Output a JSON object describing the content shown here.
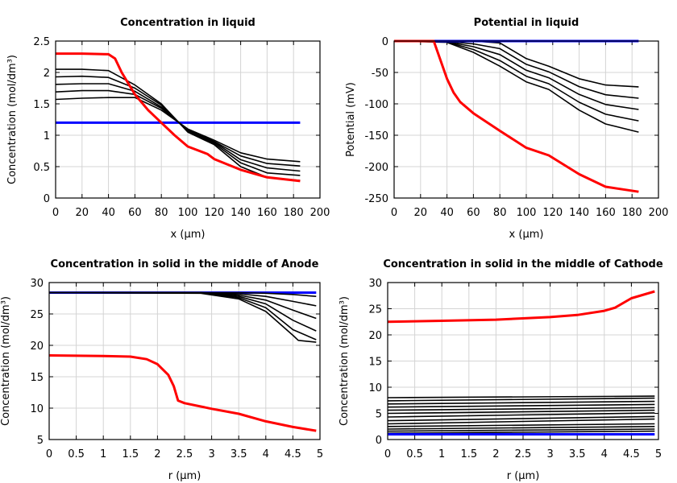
{
  "chart_data": [
    {
      "type": "line",
      "title": "Concentration in liquid",
      "xlabel": "x (µm)",
      "ylabel": "Concentration (mol/dm³)",
      "xlim": [
        0,
        200
      ],
      "ylim": [
        0,
        2.5
      ],
      "xticks": [
        "0",
        "20",
        "40",
        "60",
        "80",
        "100",
        "120",
        "140",
        "160",
        "180",
        "200"
      ],
      "yticks": [
        "0",
        "0.5",
        "1",
        "1.5",
        "2",
        "2.5"
      ],
      "grid": true,
      "series": [
        {
          "color": "#0000ff",
          "x": [
            0,
            185
          ],
          "y": [
            1.2,
            1.2
          ]
        },
        {
          "color": "#000000",
          "x": [
            0,
            20,
            40,
            60,
            80,
            100,
            120,
            140,
            160,
            185
          ],
          "y": [
            1.57,
            1.59,
            1.6,
            1.6,
            1.4,
            1.1,
            0.92,
            0.72,
            0.62,
            0.58
          ]
        },
        {
          "color": "#000000",
          "x": [
            0,
            20,
            40,
            60,
            80,
            100,
            120,
            140,
            160,
            185
          ],
          "y": [
            1.69,
            1.71,
            1.71,
            1.65,
            1.43,
            1.09,
            0.9,
            0.67,
            0.55,
            0.51
          ]
        },
        {
          "color": "#000000",
          "x": [
            0,
            20,
            40,
            60,
            80,
            100,
            120,
            140,
            160,
            185
          ],
          "y": [
            1.81,
            1.82,
            1.82,
            1.7,
            1.45,
            1.08,
            0.89,
            0.61,
            0.48,
            0.43
          ]
        },
        {
          "color": "#000000",
          "x": [
            0,
            20,
            40,
            60,
            80,
            100,
            120,
            140,
            160,
            185
          ],
          "y": [
            1.93,
            1.94,
            1.92,
            1.75,
            1.48,
            1.06,
            0.87,
            0.56,
            0.4,
            0.36
          ]
        },
        {
          "color": "#000000",
          "x": [
            0,
            20,
            40,
            60,
            80,
            100,
            120,
            140,
            160,
            185
          ],
          "y": [
            2.05,
            2.05,
            2.03,
            1.8,
            1.5,
            1.05,
            0.85,
            0.5,
            0.33,
            0.28
          ]
        },
        {
          "color": "#ff0000",
          "x": [
            0,
            20,
            40,
            45,
            50,
            60,
            70,
            80,
            90,
            100,
            115,
            120,
            140,
            160,
            185
          ],
          "y": [
            2.3,
            2.3,
            2.29,
            2.22,
            2.0,
            1.65,
            1.4,
            1.2,
            1.0,
            0.82,
            0.7,
            0.62,
            0.45,
            0.33,
            0.27
          ]
        }
      ]
    },
    {
      "type": "line",
      "title": "Potential in liquid",
      "xlabel": "x (µm)",
      "ylabel": "Potential (mV)",
      "xlim": [
        0,
        200
      ],
      "ylim": [
        -250,
        0
      ],
      "xticks": [
        "0",
        "20",
        "40",
        "60",
        "80",
        "100",
        "120",
        "140",
        "160",
        "180",
        "200"
      ],
      "yticks": [
        "-250",
        "-200",
        "-150",
        "-100",
        "-50",
        "0"
      ],
      "grid": true,
      "series": [
        {
          "color": "#000000",
          "x": [
            0,
            40,
            60,
            80,
            100,
            117,
            140,
            160,
            185
          ],
          "y": [
            0,
            0,
            0,
            -3,
            -28,
            -40,
            -60,
            -70,
            -73
          ]
        },
        {
          "color": "#000000",
          "x": [
            0,
            40,
            60,
            80,
            100,
            117,
            140,
            160,
            185
          ],
          "y": [
            0,
            -0.5,
            -4.5,
            -12,
            -37,
            -49,
            -72.5,
            -85.5,
            -91
          ]
        },
        {
          "color": "#000000",
          "x": [
            0,
            40,
            60,
            80,
            100,
            117,
            140,
            160,
            185
          ],
          "y": [
            0,
            -1,
            -9,
            -21.5,
            -46.5,
            -58.5,
            -85,
            -101,
            -109
          ]
        },
        {
          "color": "#000000",
          "x": [
            0,
            40,
            60,
            80,
            100,
            117,
            140,
            160,
            185
          ],
          "y": [
            0,
            -1.5,
            -13.5,
            -31,
            -56,
            -68,
            -97.5,
            -116.5,
            -127
          ]
        },
        {
          "color": "#000000",
          "x": [
            0,
            40,
            60,
            80,
            100,
            117,
            140,
            160,
            185
          ],
          "y": [
            0,
            -2,
            -18,
            -40,
            -65,
            -77,
            -110,
            -132,
            -145
          ]
        },
        {
          "color": "#0000ff",
          "x": [
            0,
            185
          ],
          "y": [
            0,
            0
          ]
        },
        {
          "color": "#ff0000",
          "x": [
            0,
            30,
            35,
            40,
            45,
            50,
            60,
            80,
            100,
            117,
            140,
            160,
            185
          ],
          "y": [
            0,
            0,
            -30,
            -60,
            -82,
            -97,
            -115,
            -143,
            -170,
            -182,
            -212,
            -232,
            -240
          ]
        }
      ]
    },
    {
      "type": "line",
      "title": "Concentration in solid in the middle of Anode",
      "xlabel": "r (µm)",
      "ylabel": "Concentration (mol/dm³)",
      "xlim": [
        0,
        5
      ],
      "ylim": [
        5,
        30
      ],
      "xticks": [
        "0",
        "0.5",
        "1",
        "1.5",
        "2",
        "2.5",
        "3",
        "3.5",
        "4",
        "4.5",
        "5"
      ],
      "yticks": [
        "5",
        "10",
        "15",
        "20",
        "25",
        "30"
      ],
      "grid": true,
      "series": [
        {
          "color": "#0000ff",
          "x": [
            0,
            4.93
          ],
          "y": [
            28.4,
            28.4
          ]
        },
        {
          "color": "#000000",
          "x": [
            0,
            2.8,
            3.5,
            4,
            4.5,
            4.93
          ],
          "y": [
            28.4,
            28.4,
            28.4,
            28.3,
            28.1,
            27.8
          ]
        },
        {
          "color": "#000000",
          "x": [
            0,
            2.8,
            3.5,
            4,
            4.5,
            4.93
          ],
          "y": [
            28.4,
            28.4,
            28.2,
            27.8,
            27.0,
            26.3
          ]
        },
        {
          "color": "#000000",
          "x": [
            0,
            2.8,
            3.5,
            4,
            4.5,
            4.93
          ],
          "y": [
            28.4,
            28.4,
            28.0,
            27.2,
            25.6,
            24.3
          ]
        },
        {
          "color": "#000000",
          "x": [
            0,
            2.8,
            3.5,
            4,
            4.5,
            4.93
          ],
          "y": [
            28.4,
            28.4,
            27.8,
            26.6,
            24.0,
            22.3
          ]
        },
        {
          "color": "#000000",
          "x": [
            0,
            2.8,
            3.5,
            4,
            4.5,
            4.93
          ],
          "y": [
            28.4,
            28.4,
            27.6,
            26.0,
            22.5,
            20.9
          ]
        },
        {
          "color": "#000000",
          "x": [
            0,
            2.8,
            3.5,
            4,
            4.5,
            4.6,
            4.93
          ],
          "y": [
            28.4,
            28.3,
            27.4,
            25.4,
            21.6,
            20.8,
            20.5
          ]
        },
        {
          "color": "#ff0000",
          "x": [
            0,
            0.5,
            1,
            1.5,
            1.8,
            2,
            2.2,
            2.3,
            2.38,
            2.5,
            3,
            3.5,
            4,
            4.5,
            4.93
          ],
          "y": [
            18.4,
            18.35,
            18.3,
            18.2,
            17.8,
            17,
            15.3,
            13.5,
            11.2,
            10.8,
            9.9,
            9.1,
            7.9,
            7.0,
            6.4
          ]
        }
      ]
    },
    {
      "type": "line",
      "title": "Concentration in solid in the middle of Cathode",
      "xlabel": "r (µm)",
      "ylabel": "Concentration (mol/dm³)",
      "xlim": [
        0,
        5
      ],
      "ylim": [
        0,
        30
      ],
      "xticks": [
        "0",
        "0.5",
        "1",
        "1.5",
        "2",
        "2.5",
        "3",
        "3.5",
        "4",
        "4.5",
        "5"
      ],
      "yticks": [
        "0",
        "5",
        "10",
        "15",
        "20",
        "25",
        "30"
      ],
      "grid": true,
      "series": [
        {
          "color": "#000000",
          "x": [
            0,
            4.93
          ],
          "y": [
            1.2,
            1.6
          ]
        },
        {
          "color": "#000000",
          "x": [
            0,
            4.93
          ],
          "y": [
            1.6,
            2.0
          ]
        },
        {
          "color": "#000000",
          "x": [
            0,
            4.93
          ],
          "y": [
            2.0,
            2.5
          ]
        },
        {
          "color": "#000000",
          "x": [
            0,
            4.93
          ],
          "y": [
            2.5,
            3.0
          ]
        },
        {
          "color": "#000000",
          "x": [
            0,
            4.93
          ],
          "y": [
            3.0,
            3.9
          ]
        },
        {
          "color": "#000000",
          "x": [
            0,
            4.93
          ],
          "y": [
            3.6,
            4.4
          ]
        },
        {
          "color": "#000000",
          "x": [
            0,
            4.93
          ],
          "y": [
            4.3,
            5.1
          ]
        },
        {
          "color": "#000000",
          "x": [
            0,
            4.93
          ],
          "y": [
            5.0,
            5.6
          ]
        },
        {
          "color": "#000000",
          "x": [
            0,
            4.93
          ],
          "y": [
            5.6,
            6.1
          ]
        },
        {
          "color": "#000000",
          "x": [
            0,
            4.93
          ],
          "y": [
            6.2,
            6.7
          ]
        },
        {
          "color": "#000000",
          "x": [
            0,
            4.93
          ],
          "y": [
            6.8,
            7.3
          ]
        },
        {
          "color": "#000000",
          "x": [
            0,
            4.93
          ],
          "y": [
            7.4,
            7.9
          ]
        },
        {
          "color": "#000000",
          "x": [
            0,
            4.93
          ],
          "y": [
            8.0,
            8.3
          ]
        },
        {
          "color": "#0000ff",
          "x": [
            0,
            4.93
          ],
          "y": [
            1.0,
            1.0
          ]
        },
        {
          "color": "#ff0000",
          "x": [
            0,
            0.5,
            1,
            2,
            3,
            3.5,
            4,
            4.2,
            4.5,
            4.93
          ],
          "y": [
            22.5,
            22.6,
            22.7,
            22.9,
            23.4,
            23.8,
            24.6,
            25.2,
            27.0,
            28.3
          ]
        }
      ]
    }
  ]
}
